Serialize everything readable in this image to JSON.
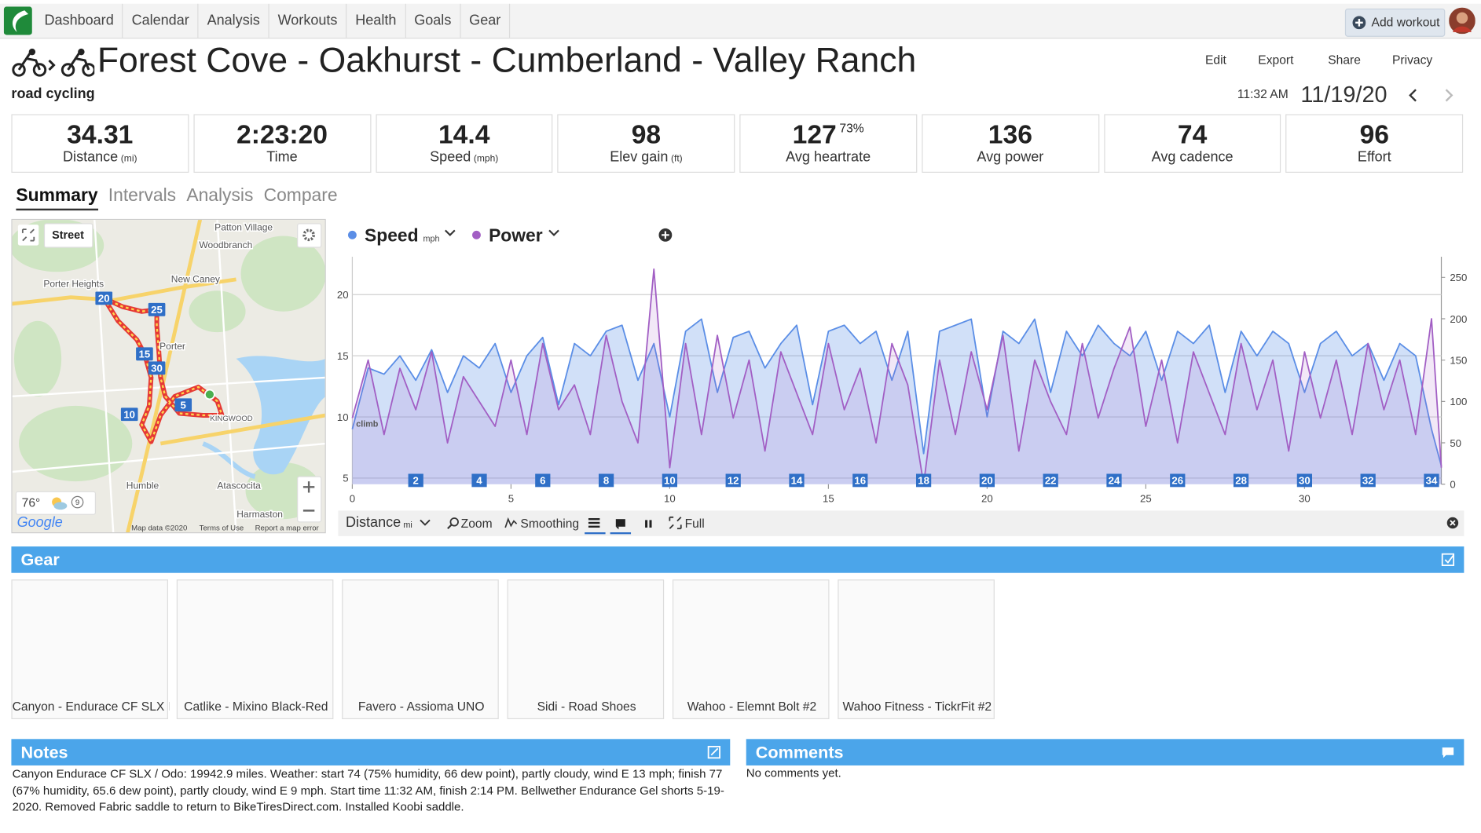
{
  "nav": {
    "items": [
      "Dashboard",
      "Calendar",
      "Analysis",
      "Workouts",
      "Health",
      "Goals",
      "Gear"
    ],
    "add_workout": "Add workout"
  },
  "header": {
    "title": "Forest Cove - Oakhurst - Cumberland - Valley Ranch",
    "sport": "road cycling",
    "actions": [
      "Edit",
      "Export",
      "Share",
      "Privacy"
    ],
    "time": "11:32 AM",
    "date": "11/19/20"
  },
  "stats": [
    {
      "value": "34.31",
      "label": "Distance",
      "unit": "(mi)"
    },
    {
      "value": "2:23:20",
      "label": "Time"
    },
    {
      "value": "14.4",
      "label": "Speed",
      "unit": "(mph)"
    },
    {
      "value": "98",
      "label": "Elev gain",
      "unit": "(ft)"
    },
    {
      "value": "127",
      "extra": "73%",
      "label": "Avg heartrate"
    },
    {
      "value": "136",
      "label": "Avg power"
    },
    {
      "value": "74",
      "label": "Avg cadence"
    },
    {
      "value": "96",
      "label": "Effort"
    }
  ],
  "tabs": [
    "Summary",
    "Intervals",
    "Analysis",
    "Compare"
  ],
  "map": {
    "layer": "Street",
    "places": [
      "Patton Village",
      "Woodbranch",
      "New Caney",
      "Porter Heights",
      "Porter",
      "KINGWOOD",
      "Humble",
      "Atascocita",
      "Harmaston"
    ],
    "markers": [
      20,
      25,
      15,
      30,
      10,
      5
    ],
    "temperature": "76°",
    "wind": "9",
    "logo": "Google",
    "attribution": [
      "Map data ©2020",
      "Terms of Use",
      "Report a map error"
    ]
  },
  "chart": {
    "type": "line",
    "x": [
      0,
      0.5,
      1,
      1.5,
      2,
      2.5,
      3,
      3.5,
      4,
      4.5,
      5,
      5.5,
      6,
      6.5,
      7,
      7.5,
      8,
      8.5,
      9,
      9.5,
      10,
      10.5,
      11,
      11.5,
      12,
      12.5,
      13,
      13.5,
      14,
      14.5,
      15,
      15.5,
      16,
      16.5,
      17,
      17.5,
      18,
      18.5,
      19,
      19.5,
      20,
      20.5,
      21,
      21.5,
      22,
      22.5,
      23,
      23.5,
      24,
      24.5,
      25,
      25.5,
      26,
      26.5,
      27,
      27.5,
      28,
      28.5,
      29,
      29.5,
      30,
      30.5,
      31,
      31.5,
      32,
      32.5,
      33,
      33.5,
      34,
      34.31
    ],
    "series": [
      {
        "name": "Speed",
        "unit": "mph",
        "color": "#5b8ee6",
        "axis": "y",
        "values": [
          9,
          14,
          13.5,
          15,
          13,
          15.5,
          12,
          15,
          14,
          16,
          12,
          15,
          16.5,
          11,
          16,
          15,
          17,
          17.5,
          13,
          16,
          10,
          17,
          18,
          12,
          16.5,
          17,
          14,
          16,
          17.5,
          11,
          17,
          17.5,
          16,
          17,
          13,
          17,
          7,
          17,
          17.5,
          18,
          10,
          17,
          16,
          18,
          12,
          17,
          15,
          17.5,
          16,
          15,
          17,
          13,
          17,
          16,
          17.5,
          12,
          17,
          15,
          17,
          16,
          12,
          16,
          17,
          15,
          16,
          13,
          16,
          15,
          9,
          6
        ]
      },
      {
        "name": "Power",
        "color": "#a25fc4",
        "axis": "y2",
        "values": [
          80,
          150,
          60,
          140,
          90,
          160,
          50,
          130,
          100,
          70,
          150,
          60,
          170,
          90,
          120,
          60,
          180,
          100,
          50,
          260,
          20,
          170,
          60,
          180,
          80,
          150,
          40,
          160,
          110,
          60,
          170,
          90,
          140,
          50,
          170,
          120,
          0,
          150,
          60,
          160,
          90,
          180,
          40,
          150,
          100,
          60,
          170,
          80,
          140,
          190,
          70,
          150,
          50,
          160,
          110,
          60,
          170,
          90,
          150,
          40,
          160,
          80,
          150,
          60,
          170,
          90,
          150,
          60,
          200,
          20
        ]
      }
    ],
    "xlim": [
      0,
      34.31
    ],
    "xticks": [
      0,
      5,
      10,
      15,
      20,
      25,
      30
    ],
    "ylim": [
      4.5,
      23.1
    ],
    "yticks": [
      5,
      10,
      15,
      20
    ],
    "y2lim": [
      0,
      275
    ],
    "y2ticks": [
      0,
      50,
      100,
      150,
      200,
      250
    ],
    "grid": true,
    "annotation": "climb",
    "laps": [
      2,
      4,
      6,
      8,
      10,
      12,
      14,
      16,
      18,
      20,
      22,
      24,
      26,
      28,
      30,
      32,
      34
    ]
  },
  "toolbar": {
    "x_axis": "Distance",
    "x_unit": "mi",
    "zoom": "Zoom",
    "smoothing": "Smoothing",
    "full": "Full"
  },
  "gear": {
    "title": "Gear",
    "items": [
      "Canyon - Endurace CF SLX I",
      "Catlike - Mixino Black-Red",
      "Favero - Assioma UNO",
      "Sidi - Road Shoes",
      "Wahoo - Elemnt Bolt #2",
      "Wahoo Fitness - TickrFit #2"
    ]
  },
  "notes": {
    "title": "Notes",
    "text": "Canyon Endurace CF SLX / Odo: 19942.9 miles. Weather: start 74 (75% humidity, 66 dew point), partly cloudy, wind E 13 mph; finish 77 (67% humidity, 65.6 dew point), partly cloudy, wind E 9 mph. Start time 11:32 AM, finish 2:14 PM. Bellwether Endurance Gel shorts 5-19-2020. Removed Fabric saddle to return to BikeTiresDirect.com. Installed Koobi saddle."
  },
  "comments": {
    "title": "Comments",
    "text": "No comments yet."
  }
}
